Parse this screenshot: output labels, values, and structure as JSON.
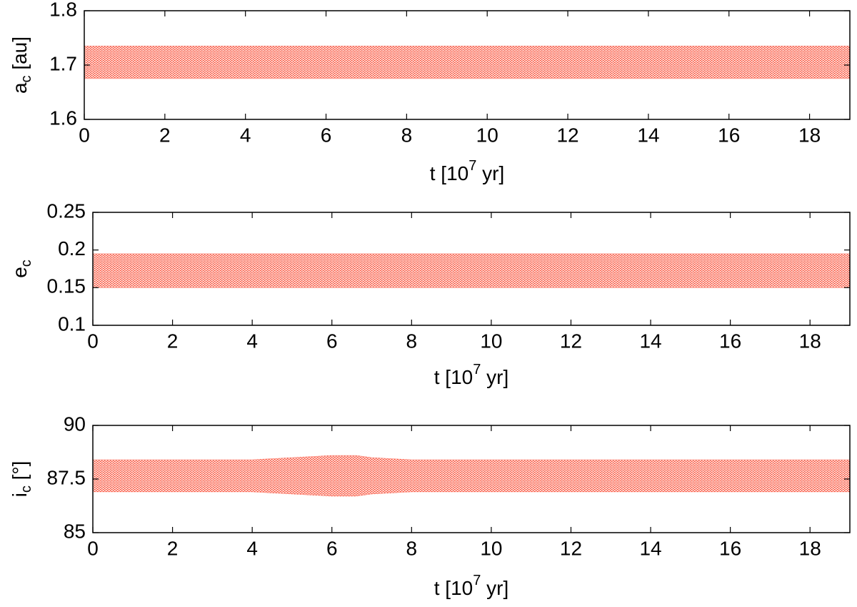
{
  "chart_data": [
    {
      "type": "band",
      "ylabel": {
        "text": "a",
        "sub": "c",
        "after": " [au]"
      },
      "xlabel": {
        "text": "t [10",
        "sup": "7",
        "after": " yr]"
      },
      "x": [
        0,
        19
      ],
      "upper": [
        1.735,
        1.735
      ],
      "lower": [
        1.675,
        1.675
      ],
      "color": "#ff2a10",
      "xlim": [
        0,
        19
      ],
      "xticks": [
        0,
        2,
        4,
        6,
        8,
        10,
        12,
        14,
        16,
        18
      ],
      "ylim": [
        1.6,
        1.8
      ],
      "yticks": [
        1.6,
        1.7,
        1.8
      ]
    },
    {
      "type": "band",
      "ylabel": {
        "text": "e",
        "sub": "c",
        "after": ""
      },
      "xlabel": {
        "text": "t [10",
        "sup": "7",
        "after": " yr]"
      },
      "x": [
        0,
        19
      ],
      "upper": [
        0.195,
        0.195
      ],
      "lower": [
        0.15,
        0.15
      ],
      "color": "#ff2a10",
      "xlim": [
        0,
        19
      ],
      "xticks": [
        0,
        2,
        4,
        6,
        8,
        10,
        12,
        14,
        16,
        18
      ],
      "ylim": [
        0.1,
        0.25
      ],
      "yticks": [
        0.1,
        0.15,
        0.2,
        0.25
      ]
    },
    {
      "type": "band",
      "ylabel": {
        "text": "i",
        "sub": "c",
        "after": " [°]"
      },
      "xlabel": {
        "text": "t [10",
        "sup": "7",
        "after": " yr]"
      },
      "x": [
        0,
        4,
        5,
        6,
        6.6,
        7,
        8,
        19
      ],
      "upper": [
        88.4,
        88.4,
        88.5,
        88.6,
        88.6,
        88.5,
        88.4,
        88.4
      ],
      "lower": [
        86.9,
        86.9,
        86.8,
        86.7,
        86.7,
        86.8,
        86.9,
        86.9
      ],
      "color": "#ff2a10",
      "xlim": [
        0,
        19
      ],
      "xticks": [
        0,
        2,
        4,
        6,
        8,
        10,
        12,
        14,
        16,
        18
      ],
      "ylim": [
        85,
        90
      ],
      "yticks": [
        85,
        87.5,
        90
      ]
    }
  ]
}
